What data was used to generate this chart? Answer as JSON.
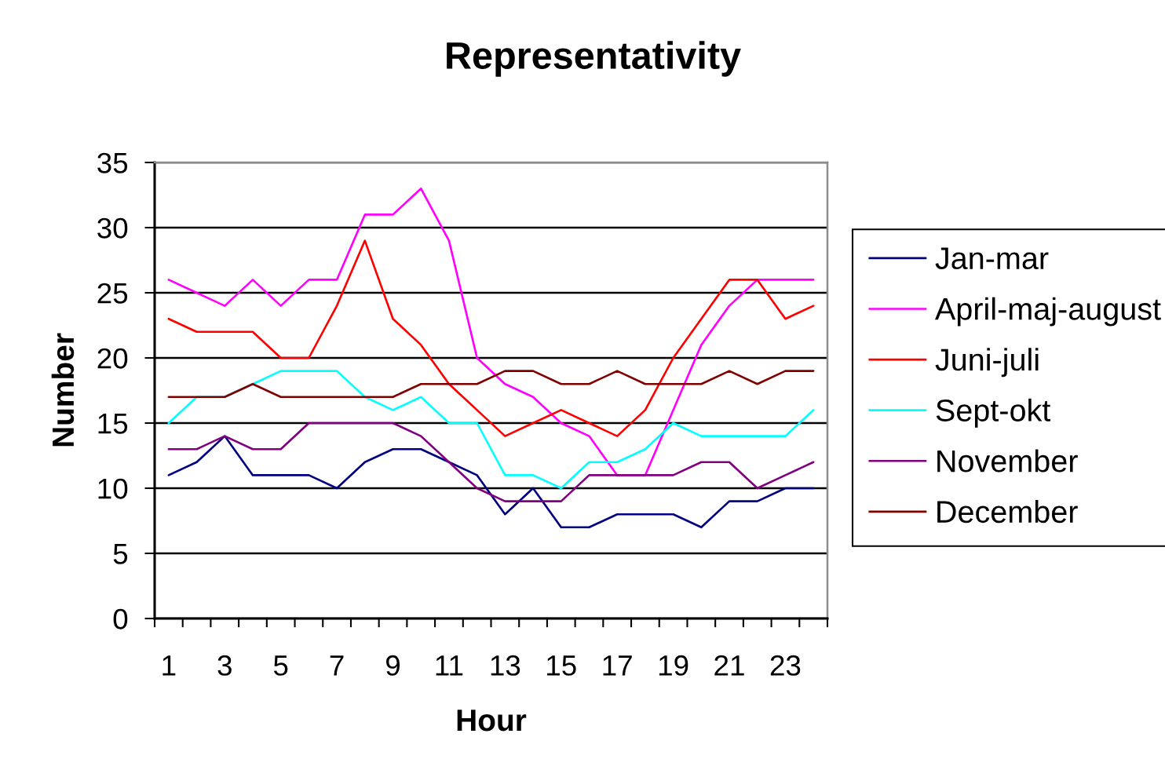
{
  "chart_data": {
    "type": "line",
    "title": "Representativity",
    "xlabel": "Hour",
    "ylabel": "Number",
    "categories": [
      "1",
      null,
      "3",
      null,
      "5",
      null,
      "7",
      null,
      "9",
      null,
      "11",
      null,
      "13",
      null,
      "15",
      null,
      "17",
      null,
      "19",
      null,
      "21",
      null,
      "23",
      null
    ],
    "ylim": [
      0,
      35
    ],
    "yticks": [
      0,
      5,
      10,
      15,
      20,
      25,
      30,
      35
    ],
    "grid": "y",
    "legend": "right",
    "line_style": "solid",
    "series": [
      {
        "name": "Jan-mar",
        "color": "#000080",
        "values": [
          11,
          12,
          14,
          11,
          11,
          11,
          10,
          12,
          13,
          13,
          12,
          11,
          8,
          10,
          7,
          7,
          8,
          8,
          8,
          7,
          9,
          9,
          10,
          10
        ]
      },
      {
        "name": "April-maj-august",
        "color": "#ff00ff",
        "values": [
          26,
          25,
          24,
          26,
          24,
          26,
          26,
          31,
          31,
          33,
          29,
          20,
          18,
          17,
          15,
          14,
          11,
          11,
          16,
          21,
          24,
          26,
          26,
          26
        ]
      },
      {
        "name": "Juni-juli",
        "color": "#ff0000",
        "values": [
          23,
          22,
          22,
          22,
          20,
          20,
          24,
          29,
          23,
          21,
          18,
          16,
          14,
          15,
          16,
          15,
          14,
          16,
          20,
          23,
          26,
          26,
          23,
          24
        ]
      },
      {
        "name": "Sept-okt",
        "color": "#00ffff",
        "values": [
          15,
          17,
          17,
          18,
          19,
          19,
          19,
          17,
          16,
          17,
          15,
          15,
          11,
          11,
          10,
          12,
          12,
          13,
          15,
          14,
          14,
          14,
          14,
          16
        ]
      },
      {
        "name": "November",
        "color": "#800080",
        "values": [
          13,
          13,
          14,
          13,
          13,
          15,
          15,
          15,
          15,
          14,
          12,
          10,
          9,
          9,
          9,
          11,
          11,
          11,
          11,
          12,
          12,
          10,
          11,
          12
        ]
      },
      {
        "name": "December",
        "color": "#800000",
        "values": [
          17,
          17,
          17,
          18,
          17,
          17,
          17,
          17,
          17,
          18,
          18,
          18,
          19,
          19,
          18,
          18,
          19,
          18,
          18,
          18,
          19,
          18,
          19,
          19
        ]
      }
    ]
  }
}
